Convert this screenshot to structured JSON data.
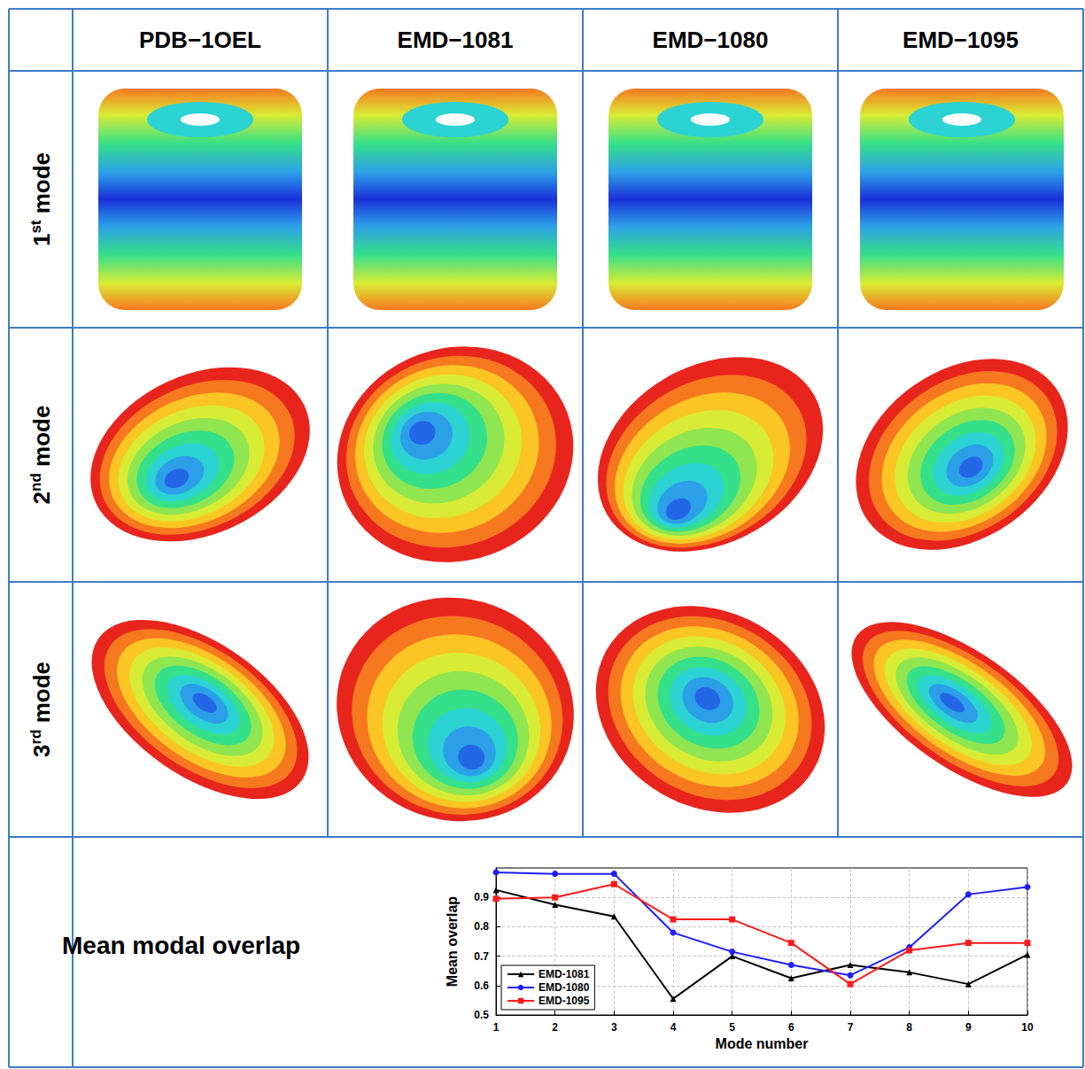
{
  "table": {
    "columns": [
      "PDB−1OEL",
      "EMD−1081",
      "EMD−1080",
      "EMD−1095"
    ],
    "rows": [
      "1st mode",
      "2nd mode",
      "3rd mode"
    ],
    "summary_row": "Mean modal overlap"
  },
  "chart_data": {
    "type": "line",
    "x": [
      1,
      2,
      3,
      4,
      5,
      6,
      7,
      8,
      9,
      10
    ],
    "series": [
      {
        "name": "EMD-1081",
        "color": "#000000",
        "marker": "triangle",
        "values": [
          0.925,
          0.875,
          0.835,
          0.555,
          0.7,
          0.625,
          0.67,
          0.645,
          0.605,
          0.705
        ]
      },
      {
        "name": "EMD-1080",
        "color": "#1f1fff",
        "marker": "circle",
        "values": [
          0.985,
          0.98,
          0.98,
          0.78,
          0.715,
          0.67,
          0.635,
          0.73,
          0.91,
          0.935
        ]
      },
      {
        "name": "EMD-1095",
        "color": "#ff1a1a",
        "marker": "square",
        "values": [
          0.895,
          0.9,
          0.945,
          0.825,
          0.825,
          0.745,
          0.605,
          0.72,
          0.745,
          0.745
        ]
      }
    ],
    "xlabel": "Mode number",
    "ylabel": "Mean overlap",
    "xlim": [
      1,
      10
    ],
    "xticks": [
      1,
      2,
      3,
      4,
      5,
      6,
      7,
      8,
      9,
      10
    ],
    "ylim": [
      0.5,
      1.0
    ],
    "yticks": [
      0.5,
      0.6,
      0.7,
      0.8,
      0.9
    ],
    "grid": true,
    "legend": "lower left"
  }
}
